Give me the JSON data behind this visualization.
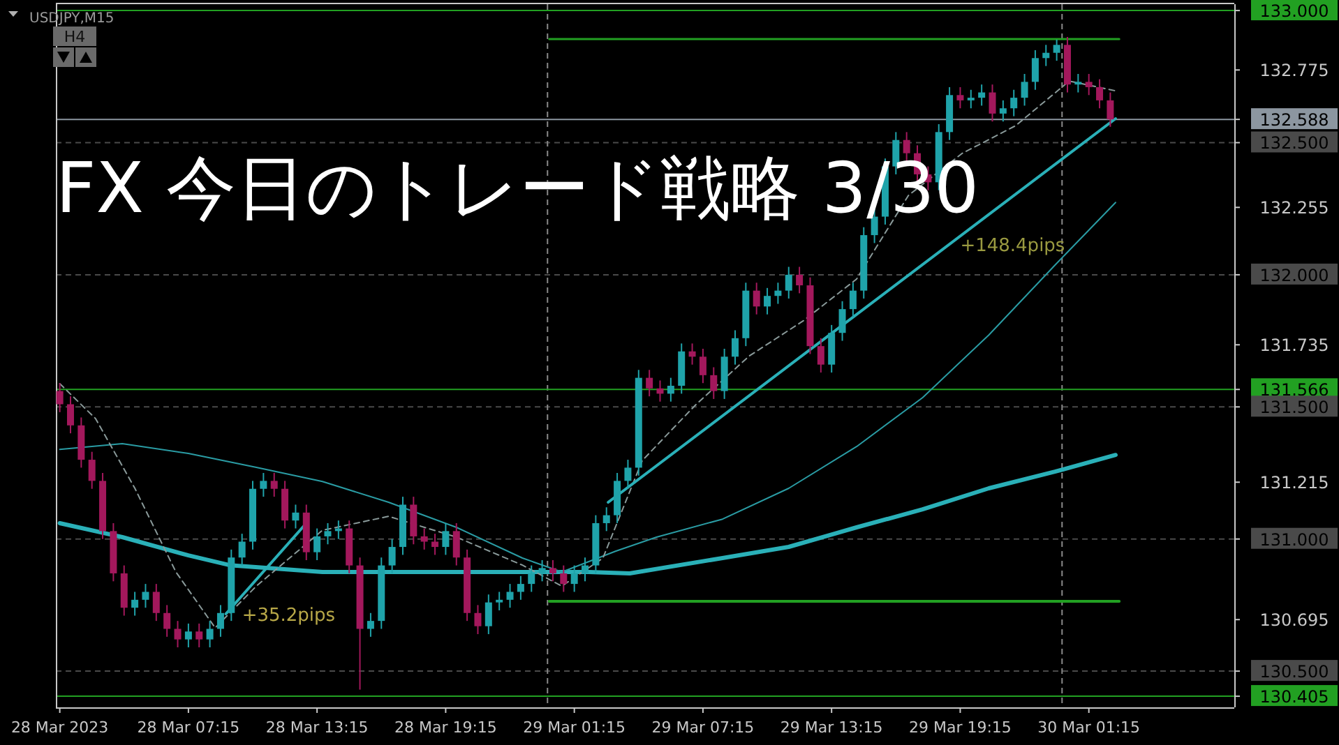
{
  "chart_data": {
    "type": "candlestick",
    "title": "FX 今日のトレード戦略 3/30",
    "annotations": [
      "USDJPY,M15",
      "H4",
      "+35.2pips",
      "+148.4pips"
    ],
    "xlim": [
      "2023-03-28T01:04",
      "2023-03-30T08:02"
    ],
    "ylim": [
      130.363,
      133.024
    ],
    "xticks": [
      {
        "value": "2023-03-28T01:15",
        "label": "28 Mar 2023"
      },
      {
        "value": "2023-03-28T07:15",
        "label": "28 Mar 07:15"
      },
      {
        "value": "2023-03-28T13:15",
        "label": "28 Mar 13:15"
      },
      {
        "value": "2023-03-28T19:15",
        "label": "28 Mar 19:15"
      },
      {
        "value": "2023-03-29T01:15",
        "label": "29 Mar 01:15"
      },
      {
        "value": "2023-03-29T07:15",
        "label": "29 Mar 07:15"
      },
      {
        "value": "2023-03-29T13:15",
        "label": "29 Mar 13:15"
      },
      {
        "value": "2023-03-29T19:15",
        "label": "29 Mar 19:15"
      },
      {
        "value": "2023-03-30T01:15",
        "label": "30 Mar 01:15"
      }
    ],
    "yticks": [
      {
        "value": 133.0,
        "label": "133.000"
      },
      {
        "value": 132.775,
        "label": "132.775"
      },
      {
        "value": 132.588,
        "label": "132.588"
      },
      {
        "value": 132.5,
        "label": "132.500"
      },
      {
        "value": 132.255,
        "label": "132.255"
      },
      {
        "value": 132.0,
        "label": "132.000"
      },
      {
        "value": 131.735,
        "label": "131.735"
      },
      {
        "value": 131.566,
        "label": "131.566"
      },
      {
        "value": 131.5,
        "label": "131.500"
      },
      {
        "value": 131.215,
        "label": "131.215"
      },
      {
        "value": 131.0,
        "label": "131.000"
      },
      {
        "value": 130.695,
        "label": "130.695"
      },
      {
        "value": 130.5,
        "label": "130.500"
      },
      {
        "value": 130.405,
        "label": "130.405"
      }
    ],
    "ref_lines": [
      {
        "axis": "y",
        "value": 133.0,
        "color": "#22a022",
        "line_style": "solid"
      },
      {
        "axis": "y",
        "value": 132.5,
        "color": "#4a4a4a",
        "line_style": "dashed"
      },
      {
        "axis": "y",
        "value": 132.0,
        "color": "#4a4a4a",
        "line_style": "dashed"
      },
      {
        "axis": "y",
        "value": 131.5,
        "color": "#4a4a4a",
        "line_style": "dashed"
      },
      {
        "axis": "y",
        "value": 131.0,
        "color": "#4a4a4a",
        "line_style": "dashed"
      },
      {
        "axis": "y",
        "value": 130.5,
        "color": "#4a4a4a",
        "line_style": "dashed"
      },
      {
        "axis": "x",
        "value": "2023-03-29T00:00",
        "color": "#8a8a8a",
        "line_style": "dashed"
      },
      {
        "axis": "x",
        "value": "2023-03-30T00:00",
        "color": "#8a8a8a",
        "line_style": "dashed"
      },
      {
        "axis": "y",
        "value": 131.566,
        "color": "#22a022",
        "line_style": "solid"
      },
      {
        "axis": "y",
        "value": 130.405,
        "color": "#22a022",
        "line_style": "solid"
      },
      {
        "axis": "y",
        "value": 132.588,
        "color": "#8c96a0",
        "line_style": "solid"
      }
    ],
    "x": [
      "2023-03-28T01:15",
      "2023-03-28T01:45",
      "2023-03-28T02:15",
      "2023-03-28T02:45",
      "2023-03-28T03:15",
      "2023-03-28T03:45",
      "2023-03-28T04:15",
      "2023-03-28T04:45",
      "2023-03-28T05:15",
      "2023-03-28T05:45",
      "2023-03-28T06:15",
      "2023-03-28T06:45",
      "2023-03-28T07:15",
      "2023-03-28T07:45",
      "2023-03-28T08:15",
      "2023-03-28T08:45",
      "2023-03-28T09:15",
      "2023-03-28T09:45",
      "2023-03-28T10:15",
      "2023-03-28T10:45",
      "2023-03-28T11:15",
      "2023-03-28T11:45",
      "2023-03-28T12:15",
      "2023-03-28T12:45",
      "2023-03-28T13:15",
      "2023-03-28T13:45",
      "2023-03-28T14:15",
      "2023-03-28T14:45",
      "2023-03-28T15:15",
      "2023-03-28T15:45",
      "2023-03-28T16:15",
      "2023-03-28T16:45",
      "2023-03-28T17:15",
      "2023-03-28T17:45",
      "2023-03-28T18:15",
      "2023-03-28T18:45",
      "2023-03-28T19:15",
      "2023-03-28T19:45",
      "2023-03-28T20:15",
      "2023-03-28T20:45",
      "2023-03-28T21:15",
      "2023-03-28T21:45",
      "2023-03-28T22:15",
      "2023-03-28T22:45",
      "2023-03-28T23:15",
      "2023-03-28T23:45",
      "2023-03-29T00:15",
      "2023-03-29T00:45",
      "2023-03-29T01:15",
      "2023-03-29T01:45",
      "2023-03-29T02:15",
      "2023-03-29T02:45",
      "2023-03-29T03:15",
      "2023-03-29T03:45",
      "2023-03-29T04:15",
      "2023-03-29T04:45",
      "2023-03-29T05:15",
      "2023-03-29T05:45",
      "2023-03-29T06:15",
      "2023-03-29T06:45",
      "2023-03-29T07:15",
      "2023-03-29T07:45",
      "2023-03-29T08:15",
      "2023-03-29T08:45",
      "2023-03-29T09:15",
      "2023-03-29T09:45",
      "2023-03-29T10:15",
      "2023-03-29T10:45",
      "2023-03-29T11:15",
      "2023-03-29T11:45",
      "2023-03-29T12:15",
      "2023-03-29T12:45",
      "2023-03-29T13:15",
      "2023-03-29T13:45",
      "2023-03-29T14:15",
      "2023-03-29T14:45",
      "2023-03-29T15:15",
      "2023-03-29T15:45",
      "2023-03-29T16:15",
      "2023-03-29T16:45",
      "2023-03-29T17:15",
      "2023-03-29T17:45",
      "2023-03-29T18:15",
      "2023-03-29T18:45",
      "2023-03-29T19:15",
      "2023-03-29T19:45",
      "2023-03-29T20:15",
      "2023-03-29T20:45",
      "2023-03-29T21:15",
      "2023-03-29T21:45",
      "2023-03-29T22:15",
      "2023-03-29T22:45",
      "2023-03-29T23:15",
      "2023-03-29T23:45",
      "2023-03-30T00:15",
      "2023-03-30T00:45",
      "2023-03-30T01:15",
      "2023-03-30T01:45",
      "2023-03-30T02:15"
    ],
    "ohlc": [
      [
        131.56,
        131.59,
        131.48,
        131.51
      ],
      [
        131.51,
        131.54,
        131.4,
        131.43
      ],
      [
        131.43,
        131.46,
        131.27,
        131.3
      ],
      [
        131.3,
        131.33,
        131.19,
        131.22
      ],
      [
        131.22,
        131.25,
        131.0,
        131.03
      ],
      [
        131.03,
        131.06,
        130.84,
        130.87
      ],
      [
        130.87,
        130.9,
        130.71,
        130.74
      ],
      [
        130.74,
        130.8,
        130.71,
        130.77
      ],
      [
        130.77,
        130.83,
        130.74,
        130.8
      ],
      [
        130.8,
        130.83,
        130.69,
        130.72
      ],
      [
        130.72,
        130.75,
        130.63,
        130.66
      ],
      [
        130.66,
        130.69,
        130.59,
        130.62
      ],
      [
        130.62,
        130.68,
        130.59,
        130.65
      ],
      [
        130.65,
        130.68,
        130.59,
        130.62
      ],
      [
        130.62,
        130.69,
        130.59,
        130.66
      ],
      [
        130.66,
        130.75,
        130.63,
        130.72
      ],
      [
        130.72,
        130.96,
        130.69,
        130.93
      ],
      [
        130.93,
        131.02,
        130.9,
        130.99
      ],
      [
        130.99,
        131.22,
        130.96,
        131.19
      ],
      [
        131.19,
        131.25,
        131.16,
        131.22
      ],
      [
        131.22,
        131.25,
        131.16,
        131.19
      ],
      [
        131.19,
        131.22,
        131.04,
        131.07
      ],
      [
        131.07,
        131.13,
        131.04,
        131.1
      ],
      [
        131.1,
        131.13,
        130.92,
        130.95
      ],
      [
        130.95,
        131.04,
        130.92,
        131.01
      ],
      [
        131.01,
        131.06,
        130.98,
        131.03
      ],
      [
        131.03,
        131.07,
        131.0,
        131.04
      ],
      [
        131.04,
        131.07,
        130.87,
        130.9
      ],
      [
        130.9,
        130.93,
        130.43,
        130.66
      ],
      [
        130.66,
        130.72,
        130.63,
        130.69
      ],
      [
        130.69,
        130.93,
        130.66,
        130.9
      ],
      [
        130.9,
        131.0,
        130.87,
        130.97
      ],
      [
        130.97,
        131.16,
        130.94,
        131.13
      ],
      [
        131.13,
        131.16,
        130.98,
        131.01
      ],
      [
        131.01,
        131.04,
        130.96,
        130.99
      ],
      [
        130.99,
        131.02,
        130.94,
        130.97
      ],
      [
        130.97,
        131.06,
        130.94,
        131.03
      ],
      [
        131.03,
        131.06,
        130.9,
        130.93
      ],
      [
        130.93,
        130.96,
        130.69,
        130.72
      ],
      [
        130.72,
        130.75,
        130.64,
        130.67
      ],
      [
        130.67,
        130.79,
        130.64,
        130.76
      ],
      [
        130.76,
        130.8,
        130.73,
        130.77
      ],
      [
        130.77,
        130.83,
        130.74,
        130.8
      ],
      [
        130.8,
        130.86,
        130.77,
        130.83
      ],
      [
        130.83,
        130.9,
        130.8,
        130.87
      ],
      [
        130.87,
        130.92,
        130.84,
        130.89
      ],
      [
        130.89,
        130.92,
        130.84,
        130.87
      ],
      [
        130.87,
        130.9,
        130.8,
        130.83
      ],
      [
        130.83,
        130.9,
        130.8,
        130.87
      ],
      [
        130.87,
        130.93,
        130.84,
        130.9
      ],
      [
        130.9,
        131.09,
        130.87,
        131.06
      ],
      [
        131.06,
        131.12,
        131.03,
        131.09
      ],
      [
        131.09,
        131.25,
        131.06,
        131.22
      ],
      [
        131.22,
        131.3,
        131.19,
        131.27
      ],
      [
        131.27,
        131.64,
        131.24,
        131.61
      ],
      [
        131.61,
        131.64,
        131.54,
        131.57
      ],
      [
        131.57,
        131.6,
        131.52,
        131.55
      ],
      [
        131.55,
        131.61,
        131.52,
        131.58
      ],
      [
        131.58,
        131.74,
        131.55,
        131.71
      ],
      [
        131.71,
        131.74,
        131.66,
        131.69
      ],
      [
        131.69,
        131.72,
        131.59,
        131.62
      ],
      [
        131.62,
        131.65,
        131.53,
        131.56
      ],
      [
        131.56,
        131.72,
        131.53,
        131.69
      ],
      [
        131.69,
        131.79,
        131.66,
        131.76
      ],
      [
        131.76,
        131.97,
        131.73,
        131.94
      ],
      [
        131.94,
        131.97,
        131.85,
        131.88
      ],
      [
        131.88,
        131.95,
        131.85,
        131.92
      ],
      [
        131.92,
        131.97,
        131.89,
        131.94
      ],
      [
        131.94,
        132.03,
        131.91,
        132.0
      ],
      [
        132.0,
        132.03,
        131.93,
        131.96
      ],
      [
        131.96,
        131.99,
        131.7,
        131.73
      ],
      [
        131.73,
        131.76,
        131.63,
        131.66
      ],
      [
        131.66,
        131.81,
        131.63,
        131.78
      ],
      [
        131.78,
        131.9,
        131.75,
        131.87
      ],
      [
        131.87,
        131.97,
        131.84,
        131.94
      ],
      [
        131.94,
        132.18,
        131.91,
        132.15
      ],
      [
        132.15,
        132.25,
        132.12,
        132.22
      ],
      [
        132.22,
        132.44,
        132.19,
        132.41
      ],
      [
        132.41,
        132.54,
        132.38,
        132.51
      ],
      [
        132.51,
        132.54,
        132.43,
        132.46
      ],
      [
        132.46,
        132.49,
        132.35,
        132.38
      ],
      [
        132.38,
        132.41,
        132.32,
        132.35
      ],
      [
        132.35,
        132.57,
        132.32,
        132.54
      ],
      [
        132.54,
        132.71,
        132.51,
        132.68
      ],
      [
        132.68,
        132.71,
        132.63,
        132.66
      ],
      [
        132.66,
        132.7,
        132.63,
        132.67
      ],
      [
        132.67,
        132.72,
        132.64,
        132.69
      ],
      [
        132.69,
        132.72,
        132.58,
        132.61
      ],
      [
        132.61,
        132.66,
        132.58,
        132.63
      ],
      [
        132.63,
        132.7,
        132.6,
        132.67
      ],
      [
        132.67,
        132.76,
        132.64,
        132.73
      ],
      [
        132.73,
        132.85,
        132.7,
        132.82
      ],
      [
        132.82,
        132.87,
        132.79,
        132.84
      ],
      [
        132.84,
        132.89,
        132.81,
        132.87
      ],
      [
        132.87,
        132.9,
        132.69,
        132.72
      ],
      [
        132.72,
        132.76,
        132.69,
        132.73
      ],
      [
        132.73,
        132.76,
        132.68,
        132.71
      ],
      [
        132.71,
        132.74,
        132.63,
        132.66
      ],
      [
        132.66,
        132.69,
        132.56,
        132.588
      ]
    ],
    "colors": [
      "#a3185c",
      "#a3185c",
      "#a3185c",
      "#a3185c",
      "#a3185c",
      "#a3185c",
      "#a3185c",
      "#1fa3aa",
      "#1fa3aa",
      "#a3185c",
      "#a3185c",
      "#a3185c",
      "#1fa3aa",
      "#a3185c",
      "#1fa3aa",
      "#1fa3aa",
      "#1fa3aa",
      "#1fa3aa",
      "#1fa3aa",
      "#1fa3aa",
      "#a3185c",
      "#a3185c",
      "#1fa3aa",
      "#a3185c",
      "#1fa3aa",
      "#1fa3aa",
      "#1fa3aa",
      "#a3185c",
      "#a3185c",
      "#1fa3aa",
      "#1fa3aa",
      "#1fa3aa",
      "#1fa3aa",
      "#a3185c",
      "#a3185c",
      "#a3185c",
      "#1fa3aa",
      "#a3185c",
      "#a3185c",
      "#a3185c",
      "#1fa3aa",
      "#1fa3aa",
      "#1fa3aa",
      "#1fa3aa",
      "#1fa3aa",
      "#1fa3aa",
      "#a3185c",
      "#a3185c",
      "#1fa3aa",
      "#1fa3aa",
      "#1fa3aa",
      "#1fa3aa",
      "#1fa3aa",
      "#1fa3aa",
      "#1fa3aa",
      "#a3185c",
      "#a3185c",
      "#1fa3aa",
      "#1fa3aa",
      "#a3185c",
      "#a3185c",
      "#a3185c",
      "#1fa3aa",
      "#1fa3aa",
      "#1fa3aa",
      "#a3185c",
      "#1fa3aa",
      "#1fa3aa",
      "#1fa3aa",
      "#a3185c",
      "#a3185c",
      "#a3185c",
      "#1fa3aa",
      "#1fa3aa",
      "#1fa3aa",
      "#1fa3aa",
      "#1fa3aa",
      "#1fa3aa",
      "#1fa3aa",
      "#a3185c",
      "#a3185c",
      "#a3185c",
      "#1fa3aa",
      "#1fa3aa",
      "#a3185c",
      "#1fa3aa",
      "#1fa3aa",
      "#a3185c",
      "#1fa3aa",
      "#1fa3aa",
      "#1fa3aa",
      "#1fa3aa",
      "#1fa3aa",
      "#1fa3aa",
      "#a3185c",
      "#1fa3aa",
      "#a3185c",
      "#a3185c",
      "#a3185c"
    ],
    "series": [
      {
        "type": "line",
        "color": "#2ab0b8",
        "line_style": "solid",
        "x": [
          "2023-03-28T01:15",
          "2023-03-28T04:10",
          "2023-03-28T07:15",
          "2023-03-28T09:10",
          "2023-03-28T13:30",
          "2023-03-28T19:45",
          "2023-03-29T01:55",
          "2023-03-29T03:50",
          "2023-03-29T08:10",
          "2023-03-29T11:15",
          "2023-03-29T14:25",
          "2023-03-29T17:30",
          "2023-03-29T20:35",
          "2023-03-29T23:40",
          "2023-03-30T02:30"
        ],
        "values": [
          131.06,
          131.007,
          130.938,
          130.901,
          130.875,
          130.875,
          130.875,
          130.87,
          130.928,
          130.97,
          131.044,
          131.112,
          131.192,
          131.255,
          131.318
        ]
      },
      {
        "type": "line",
        "color": "#2a9ca4",
        "line_style": "solid",
        "x": [
          "2023-03-28T01:15",
          "2023-03-28T04:10",
          "2023-03-28T07:15",
          "2023-03-28T10:25",
          "2023-03-28T13:30",
          "2023-03-28T16:35",
          "2023-03-28T19:45",
          "2023-03-28T22:50",
          "2023-03-29T00:40",
          "2023-03-29T03:10",
          "2023-03-29T05:05",
          "2023-03-29T08:10",
          "2023-03-29T11:15",
          "2023-03-29T14:25",
          "2023-03-29T17:30",
          "2023-03-29T20:35",
          "2023-03-29T23:40",
          "2023-03-30T02:30"
        ],
        "values": [
          131.339,
          131.361,
          131.324,
          131.271,
          131.218,
          131.139,
          131.044,
          130.928,
          130.875,
          130.954,
          131.007,
          131.075,
          131.192,
          131.35,
          131.535,
          131.772,
          132.036,
          132.274
        ]
      },
      {
        "type": "line",
        "color": "#8a9a9a",
        "line_style": "dashed",
        "x": [
          "2023-03-28T01:15",
          "2023-03-28T02:55",
          "2023-03-28T04:45",
          "2023-03-28T06:40",
          "2023-03-28T08:30",
          "2023-03-28T10:25",
          "2023-03-28T13:30",
          "2023-03-28T16:35",
          "2023-03-28T19:45",
          "2023-03-28T22:50",
          "2023-03-29T00:40",
          "2023-03-29T02:35",
          "2023-03-29T04:25",
          "2023-03-29T06:55",
          "2023-03-29T09:25",
          "2023-03-29T11:55",
          "2023-03-29T14:25",
          "2023-03-29T16:50",
          "2023-03-29T19:20",
          "2023-03-29T21:50",
          "2023-03-30T00:20",
          "2023-03-30T02:30"
        ],
        "values": [
          131.588,
          131.456,
          131.192,
          130.875,
          130.664,
          130.822,
          131.033,
          131.086,
          131.007,
          130.901,
          130.822,
          130.928,
          131.297,
          131.508,
          131.693,
          131.825,
          131.984,
          132.3,
          132.459,
          132.564,
          132.733,
          132.696
        ]
      },
      {
        "type": "line",
        "color": "#2ab0b8",
        "line_style": "solid",
        "x": [
          "2023-03-28T09:00",
          "2023-03-28T12:45"
        ],
        "values": [
          130.717,
          131.06
        ]
      },
      {
        "type": "line",
        "color": "#2ab0b8",
        "line_style": "solid",
        "x": [
          "2023-03-29T02:50",
          "2023-03-30T02:30"
        ],
        "values": [
          131.139,
          132.591
        ]
      },
      {
        "type": "line",
        "color": "#22a022",
        "line_style": "solid",
        "x": [
          "2023-03-29T00:05",
          "2023-03-30T02:40"
        ],
        "values": [
          132.892,
          132.892
        ]
      },
      {
        "type": "line",
        "color": "#22a022",
        "line_style": "solid",
        "x": [
          "2023-03-29T00:05",
          "2023-03-30T02:40"
        ],
        "values": [
          130.764,
          130.764
        ]
      }
    ]
  }
}
